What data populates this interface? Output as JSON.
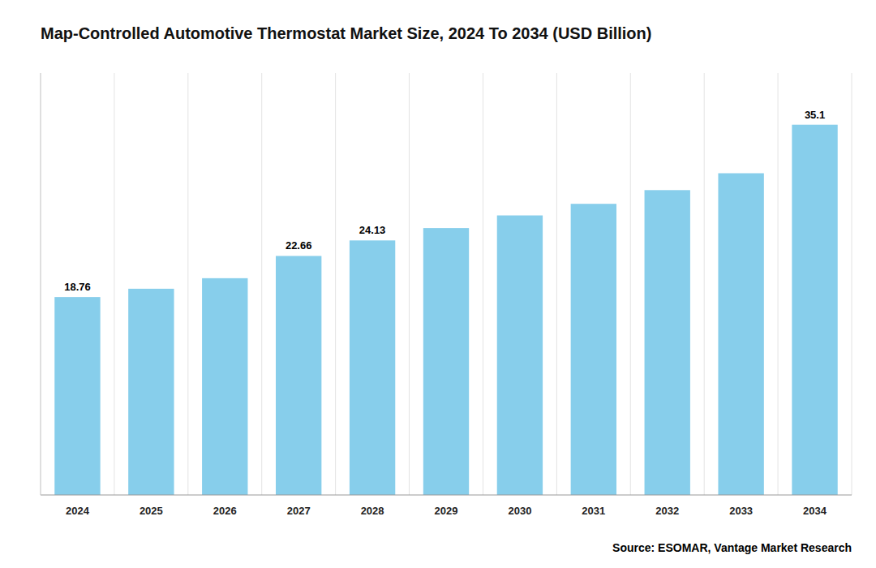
{
  "chart_data": {
    "type": "bar",
    "title": "Map-Controlled Automotive Thermostat Market Size, 2024 To 2034 (USD Billion)",
    "categories": [
      "2024",
      "2025",
      "2026",
      "2027",
      "2028",
      "2029",
      "2030",
      "2031",
      "2032",
      "2033",
      "2034"
    ],
    "values": [
      18.76,
      19.55,
      20.55,
      22.66,
      24.13,
      25.3,
      26.5,
      27.6,
      28.9,
      30.5,
      35.1
    ],
    "value_labels": [
      "18.76",
      null,
      null,
      "22.66",
      "24.13",
      null,
      null,
      null,
      null,
      null,
      "35.1"
    ],
    "data_labels": true,
    "color": "#87CEEB",
    "ylim": [
      0,
      40
    ],
    "tick_labels": "x",
    "grid": true,
    "annotations": [
      "Source: ESOMAR, Vantage Market Research"
    ]
  }
}
